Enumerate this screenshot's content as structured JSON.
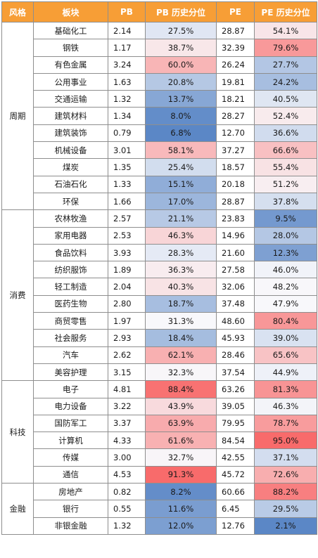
{
  "headers": [
    "风格",
    "板块",
    "PB",
    "PB 历史分位",
    "PE",
    "PE 历史分位"
  ],
  "groups": [
    {
      "style": "周期",
      "rows": [
        {
          "sector": "基础化工",
          "pb": "2.14",
          "pb_pct": "27.5%",
          "pe": "28.87",
          "pe_pct": "54.1%"
        },
        {
          "sector": "钢铁",
          "pb": "1.17",
          "pb_pct": "38.7%",
          "pe": "32.39",
          "pe_pct": "79.6%"
        },
        {
          "sector": "有色金属",
          "pb": "3.24",
          "pb_pct": "60.0%",
          "pe": "26.24",
          "pe_pct": "27.7%"
        },
        {
          "sector": "公用事业",
          "pb": "1.63",
          "pb_pct": "20.8%",
          "pe": "19.81",
          "pe_pct": "24.2%"
        },
        {
          "sector": "交通运输",
          "pb": "1.32",
          "pb_pct": "13.7%",
          "pe": "18.21",
          "pe_pct": "40.5%"
        },
        {
          "sector": "建筑材料",
          "pb": "1.34",
          "pb_pct": "8.0%",
          "pe": "28.27",
          "pe_pct": "52.4%"
        },
        {
          "sector": "建筑装饰",
          "pb": "0.79",
          "pb_pct": "6.8%",
          "pe": "12.70",
          "pe_pct": "36.6%"
        },
        {
          "sector": "机械设备",
          "pb": "3.01",
          "pb_pct": "58.1%",
          "pe": "37.27",
          "pe_pct": "66.6%"
        },
        {
          "sector": "煤炭",
          "pb": "1.35",
          "pb_pct": "25.4%",
          "pe": "18.57",
          "pe_pct": "55.4%"
        },
        {
          "sector": "石油石化",
          "pb": "1.33",
          "pb_pct": "15.1%",
          "pe": "20.18",
          "pe_pct": "51.2%"
        },
        {
          "sector": "环保",
          "pb": "1.66",
          "pb_pct": "17.0%",
          "pe": "28.87",
          "pe_pct": "37.8%"
        }
      ]
    },
    {
      "style": "消费",
      "rows": [
        {
          "sector": "农林牧渔",
          "pb": "2.57",
          "pb_pct": "21.1%",
          "pe": "23.83",
          "pe_pct": "9.5%"
        },
        {
          "sector": "家用电器",
          "pb": "2.53",
          "pb_pct": "46.3%",
          "pe": "14.96",
          "pe_pct": "28.0%"
        },
        {
          "sector": "食品饮料",
          "pb": "3.93",
          "pb_pct": "28.3%",
          "pe": "21.60",
          "pe_pct": "12.3%"
        },
        {
          "sector": "纺织服饰",
          "pb": "1.89",
          "pb_pct": "36.3%",
          "pe": "27.58",
          "pe_pct": "46.0%"
        },
        {
          "sector": "轻工制造",
          "pb": "2.04",
          "pb_pct": "40.3%",
          "pe": "32.06",
          "pe_pct": "48.2%"
        },
        {
          "sector": "医药生物",
          "pb": "2.80",
          "pb_pct": "18.7%",
          "pe": "37.48",
          "pe_pct": "47.9%"
        },
        {
          "sector": "商贸零售",
          "pb": "1.97",
          "pb_pct": "31.3%",
          "pe": "48.60",
          "pe_pct": "80.4%"
        },
        {
          "sector": "社会服务",
          "pb": "2.93",
          "pb_pct": "18.4%",
          "pe": "45.93",
          "pe_pct": "39.0%"
        },
        {
          "sector": "汽车",
          "pb": "2.62",
          "pb_pct": "62.1%",
          "pe": "28.46",
          "pe_pct": "65.6%"
        },
        {
          "sector": "美容护理",
          "pb": "3.15",
          "pb_pct": "32.3%",
          "pe": "37.54",
          "pe_pct": "44.9%"
        }
      ]
    },
    {
      "style": "科技",
      "rows": [
        {
          "sector": "电子",
          "pb": "4.81",
          "pb_pct": "88.4%",
          "pe": "63.26",
          "pe_pct": "81.3%"
        },
        {
          "sector": "电力设备",
          "pb": "3.22",
          "pb_pct": "43.9%",
          "pe": "39.05",
          "pe_pct": "46.3%"
        },
        {
          "sector": "国防军工",
          "pb": "3.37",
          "pb_pct": "63.9%",
          "pe": "79.95",
          "pe_pct": "78.7%"
        },
        {
          "sector": "计算机",
          "pb": "4.33",
          "pb_pct": "61.6%",
          "pe": "84.54",
          "pe_pct": "95.0%"
        },
        {
          "sector": "传媒",
          "pb": "3.00",
          "pb_pct": "32.7%",
          "pe": "42.55",
          "pe_pct": "37.1%"
        },
        {
          "sector": "通信",
          "pb": "4.53",
          "pb_pct": "91.3%",
          "pe": "45.72",
          "pe_pct": "72.6%"
        }
      ]
    },
    {
      "style": "金融",
      "rows": [
        {
          "sector": "房地产",
          "pb": "0.82",
          "pb_pct": "8.2%",
          "pe": "60.66",
          "pe_pct": "88.2%"
        },
        {
          "sector": "银行",
          "pb": "0.55",
          "pb_pct": "11.6%",
          "pe": "6.45",
          "pe_pct": "29.5%"
        },
        {
          "sector": "非银金融",
          "pb": "1.32",
          "pb_pct": "12.0%",
          "pe": "12.76",
          "pe_pct": "2.1%"
        }
      ]
    }
  ],
  "colors": {
    "header_bg": "#f79e36",
    "header_text": "#ffffff",
    "low": "#5b87c6",
    "mid": "#f8f8fb",
    "high": "#f86b6b",
    "grid": "#8e8e8e"
  }
}
